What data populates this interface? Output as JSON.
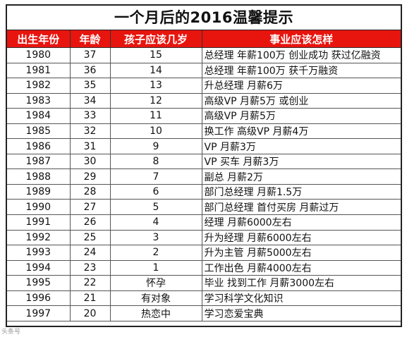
{
  "title": "一个月后的2016温馨提示",
  "headers": [
    "出生年份",
    "年龄",
    "孩子应该几岁",
    "事业应该怎样"
  ],
  "rows": [
    [
      "1980",
      "37",
      "15",
      "总经理 年薪100万 创业成功 获过亿融资"
    ],
    [
      "1981",
      "36",
      "14",
      "总经理 年薪100万 获千万融资"
    ],
    [
      "1982",
      "35",
      "13",
      "升总经理 月薪6万"
    ],
    [
      "1983",
      "34",
      "12",
      "高级VP 月薪5万 或创业"
    ],
    [
      "1984",
      "33",
      "11",
      "高级VP 月薪5万"
    ],
    [
      "1985",
      "32",
      "10",
      "换工作 高级VP 月薪4万"
    ],
    [
      "1986",
      "31",
      "9",
      "VP 月薪3万"
    ],
    [
      "1987",
      "30",
      "8",
      "VP 买车 月薪3万"
    ],
    [
      "1988",
      "29",
      "7",
      "副总 月薪2万"
    ],
    [
      "1989",
      "28",
      "6",
      "部门总经理 月薪1.5万"
    ],
    [
      "1990",
      "27",
      "5",
      "部门总经理 首付买房 月薪过万"
    ],
    [
      "1991",
      "26",
      "4",
      "经理 月薪6000左右"
    ],
    [
      "1992",
      "25",
      "3",
      "升为经理 月薪6000左右"
    ],
    [
      "1993",
      "24",
      "2",
      "升为主管 月薪5000左右"
    ],
    [
      "1994",
      "23",
      "1",
      "工作出色 月薪4000左右"
    ],
    [
      "1995",
      "22",
      "怀孕",
      "毕业 找到工作 月薪3000左右"
    ],
    [
      "1996",
      "21",
      "有对象",
      "学习科学文化知识"
    ],
    [
      "1997",
      "20",
      "热恋中",
      "学习恋爱宝典"
    ]
  ],
  "watermark": "头条号",
  "colors": {
    "header_bg": "#e8150f",
    "header_text": "#ffffff",
    "border": "#333333"
  }
}
